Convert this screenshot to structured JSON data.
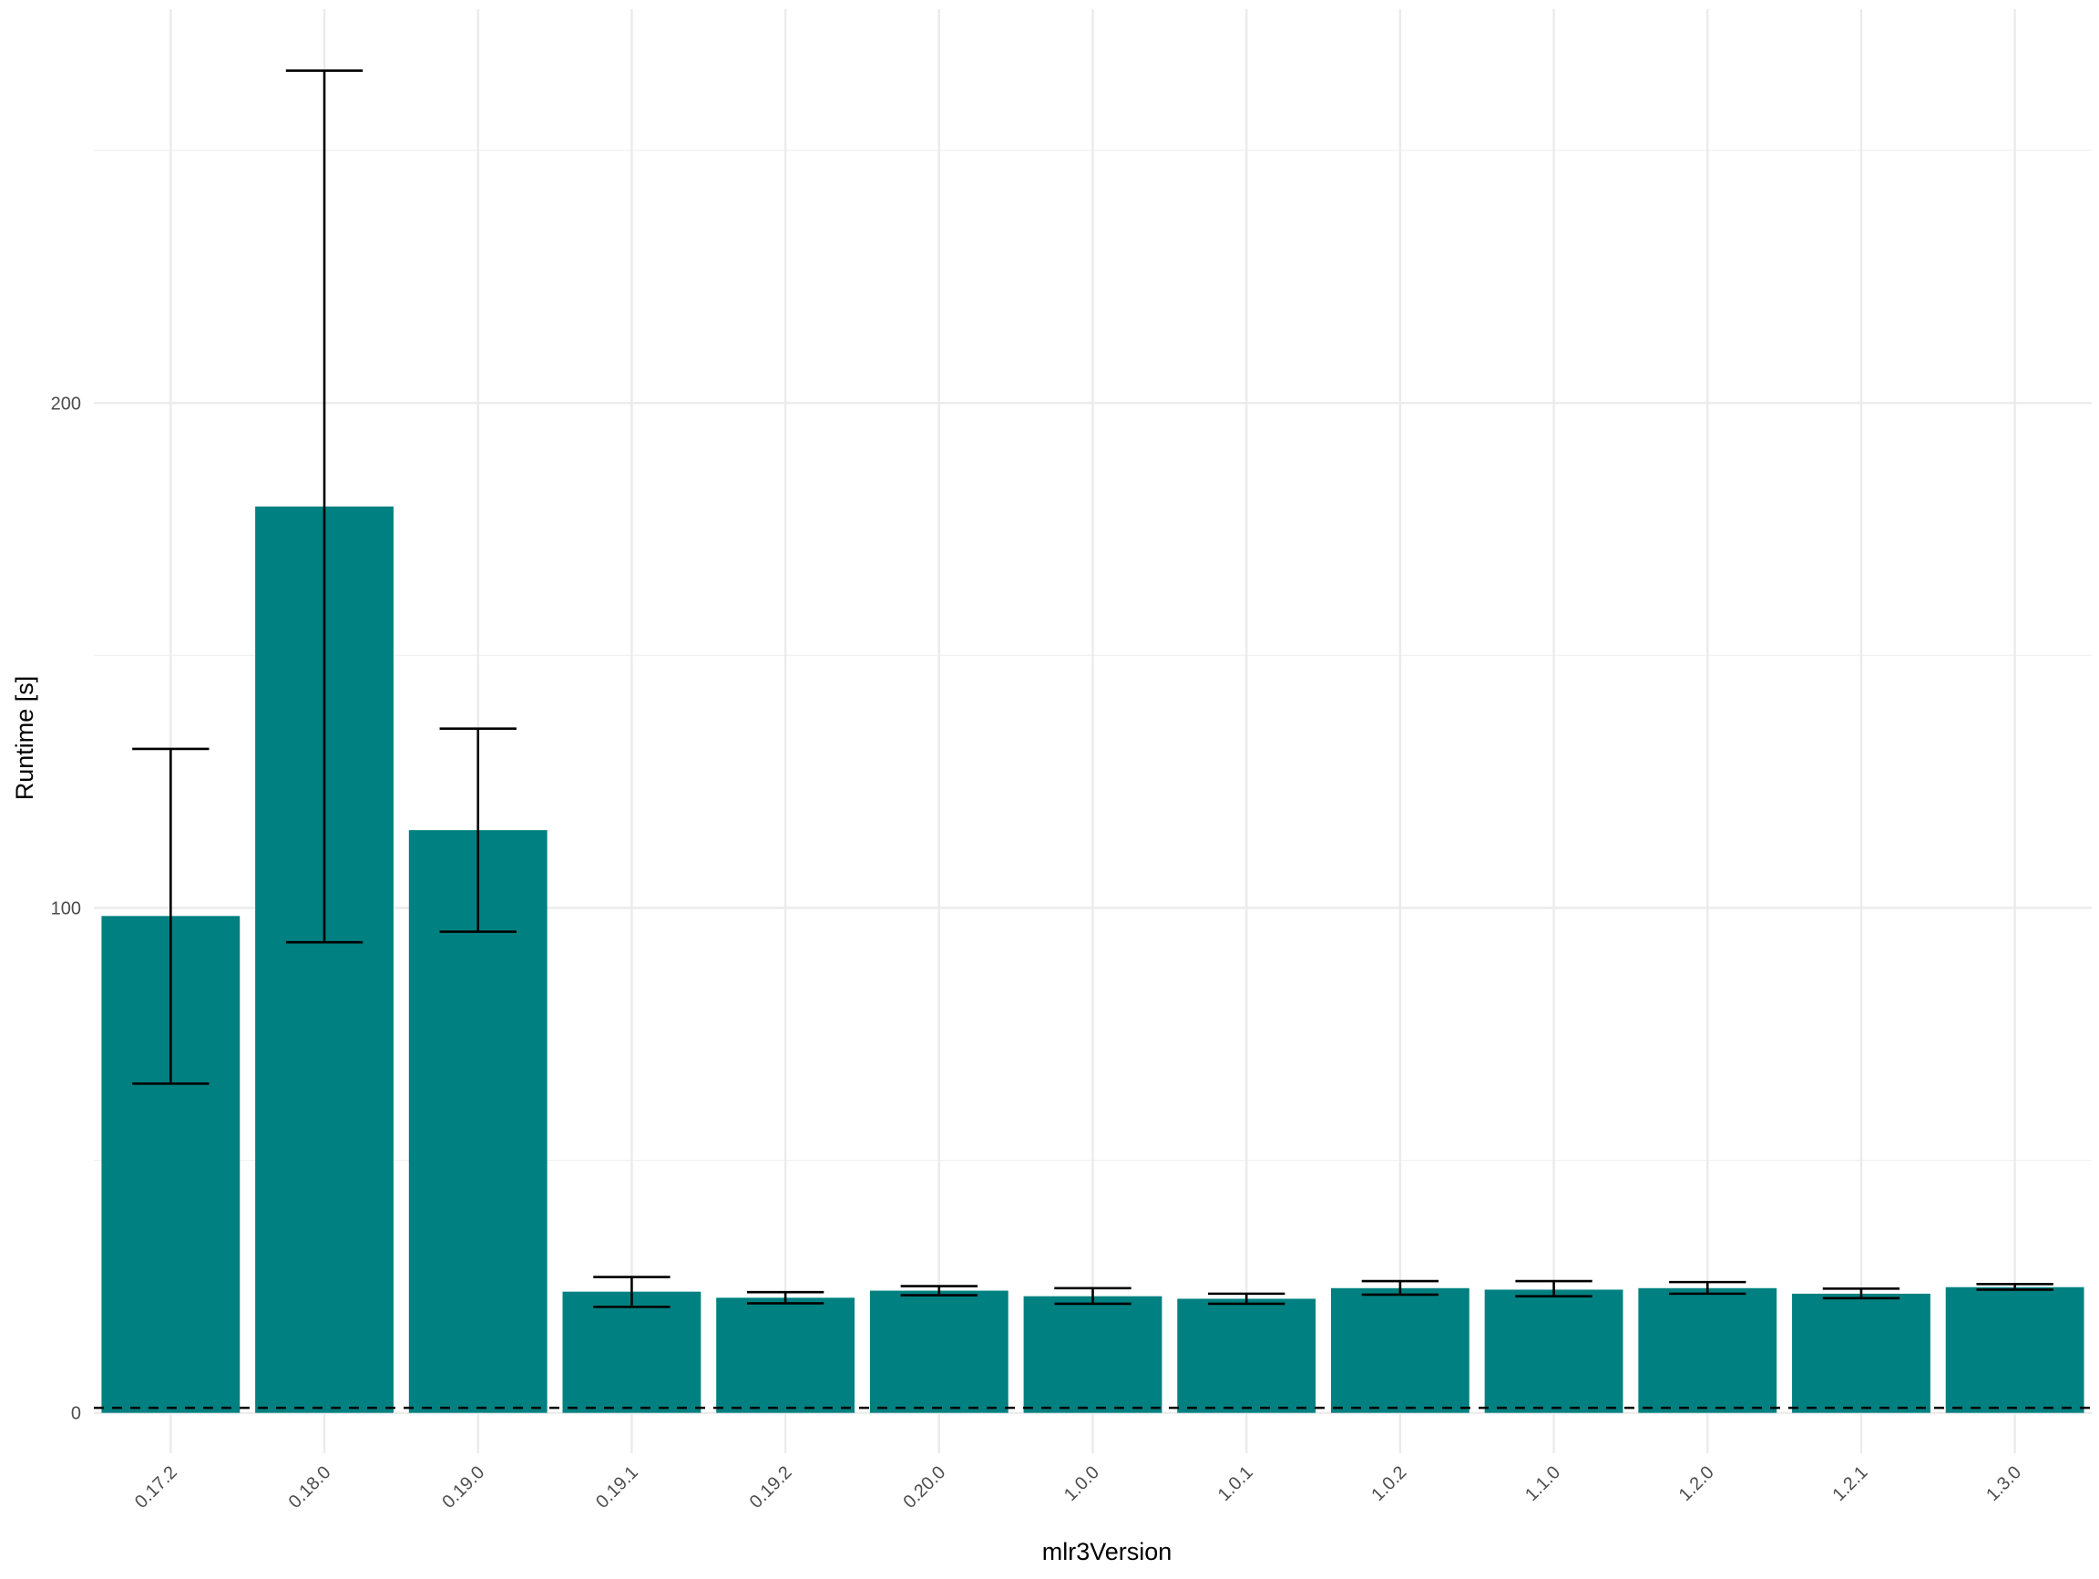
{
  "chart_data": {
    "type": "bar",
    "title": "",
    "xlabel": "mlr3Version",
    "ylabel": "Runtime [s]",
    "ylim": [
      -8,
      278
    ],
    "yticks": [
      0,
      100,
      200
    ],
    "grid": true,
    "legend": "none",
    "categories": [
      "0.17.2",
      "0.18.0",
      "0.19.0",
      "0.19.1",
      "0.19.2",
      "0.20.0",
      "1.0.0",
      "1.0.1",
      "1.0.2",
      "1.1.0",
      "1.2.0",
      "1.2.1",
      "1.3.0"
    ],
    "values": [
      98.4,
      179.5,
      115.4,
      24.0,
      22.8,
      24.2,
      23.1,
      22.6,
      24.7,
      24.4,
      24.7,
      23.6,
      24.9
    ],
    "error_low": [
      65.2,
      93.2,
      95.3,
      21.0,
      21.7,
      23.3,
      21.6,
      21.6,
      23.4,
      23.1,
      23.6,
      22.7,
      24.4
    ],
    "error_high": [
      131.5,
      265.8,
      135.5,
      26.9,
      23.9,
      25.1,
      24.7,
      23.6,
      26.1,
      26.1,
      25.9,
      24.6,
      25.5
    ],
    "reference_line": 1,
    "colors": {
      "bar": "#008080",
      "errorbar": "#000000",
      "reference_line": "#000000",
      "grid": "#ebebeb"
    }
  }
}
